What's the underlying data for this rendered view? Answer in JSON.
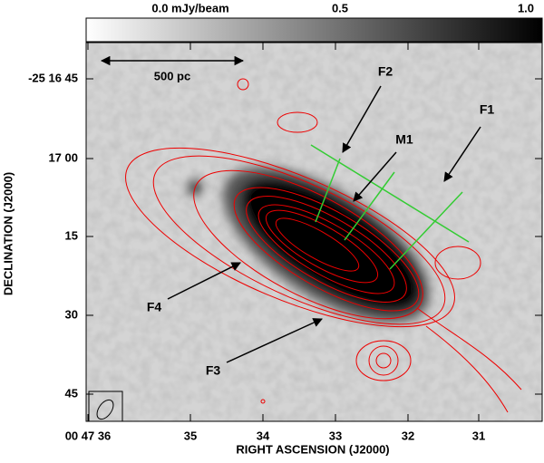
{
  "colorbar": {
    "labels": [
      "0.0 mJy/beam",
      "0.5",
      "1.0"
    ]
  },
  "x_axis": {
    "label": "RIGHT ASCENSION (J2000)",
    "ticks": [
      "00 47 36",
      "35",
      "34",
      "33",
      "32",
      "31"
    ]
  },
  "y_axis": {
    "label": "DECLINATION (J2000)",
    "ticks": [
      "-25 16 45",
      "17 00",
      "15",
      "30",
      "45"
    ]
  },
  "annotations": {
    "scale": "500 pc",
    "labels": [
      "F1",
      "F2",
      "M1",
      "F3",
      "F4"
    ]
  }
}
